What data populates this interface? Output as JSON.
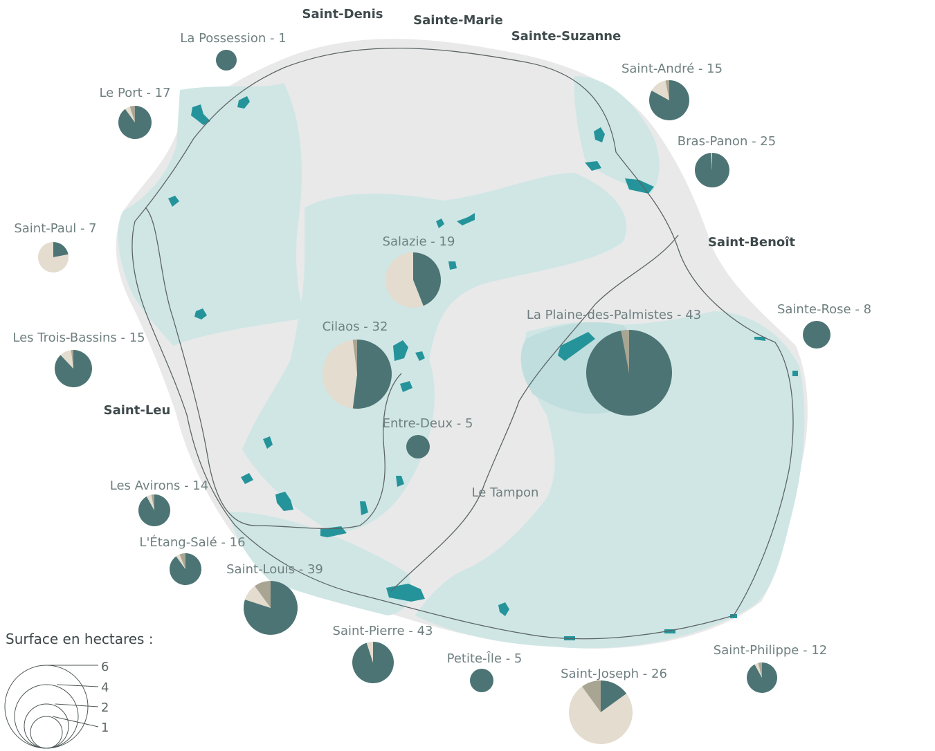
{
  "colors": {
    "island": "#eaeaea",
    "zone": "#cfe7e6",
    "water": "#25949a",
    "pie_main": "#4d7474",
    "pie_beige": "#e4dcce",
    "pie_grey": "#a8a593",
    "road": "#5d6566"
  },
  "cities": [
    {
      "name": "Saint-Denis"
    },
    {
      "name": "Sainte-Marie"
    },
    {
      "name": "Sainte-Suzanne"
    },
    {
      "name": "Saint-Benoît"
    },
    {
      "name": "Saint-Leu"
    },
    {
      "name": "Le Tampon"
    }
  ],
  "communes": [
    {
      "label": "La Possession - 1",
      "shares": [
        1,
        0,
        0
      ]
    },
    {
      "label": "Le Port - 17",
      "shares": [
        0.9,
        0.05,
        0.05
      ]
    },
    {
      "label": "Saint-Paul - 7",
      "shares": [
        0.22,
        0.78,
        0
      ]
    },
    {
      "label": "Les Trois-Bassins - 15",
      "shares": [
        0.88,
        0.1,
        0.02
      ]
    },
    {
      "label": "Les Avirons - 14",
      "shares": [
        0.92,
        0.05,
        0.03
      ]
    },
    {
      "label": "L'Étang-Salé - 16",
      "shares": [
        0.9,
        0.04,
        0.06
      ]
    },
    {
      "label": "Saint-Louis - 39",
      "shares": [
        0.8,
        0.1,
        0.1
      ]
    },
    {
      "label": "Saint-Pierre - 43",
      "shares": [
        0.95,
        0.05,
        0
      ]
    },
    {
      "label": "Petite-Île - 5",
      "shares": [
        1,
        0,
        0
      ]
    },
    {
      "label": "Saint-Joseph - 26",
      "shares": [
        0.15,
        0.75,
        0.1
      ]
    },
    {
      "label": "Saint-Philippe - 12",
      "shares": [
        0.92,
        0.04,
        0.04
      ]
    },
    {
      "label": "Sainte-Rose - 8",
      "shares": [
        1,
        0,
        0
      ]
    },
    {
      "label": "La Plaine-des-Palmistes - 43",
      "shares": [
        0.97,
        0,
        0.03
      ]
    },
    {
      "label": "Entre-Deux - 5",
      "shares": [
        1,
        0,
        0
      ]
    },
    {
      "label": "Cilaos - 32",
      "shares": [
        0.52,
        0.46,
        0.02
      ]
    },
    {
      "label": "Salazie - 19",
      "shares": [
        0.44,
        0.56,
        0
      ]
    },
    {
      "label": "Bras-Panon - 25",
      "shares": [
        0.99,
        0.01,
        0
      ]
    },
    {
      "label": "Saint-André - 15",
      "shares": [
        0.83,
        0.14,
        0.03
      ]
    }
  ],
  "legend": {
    "title": "Surface en hectares :",
    "values": [
      "6",
      "4",
      "2",
      "1"
    ]
  }
}
